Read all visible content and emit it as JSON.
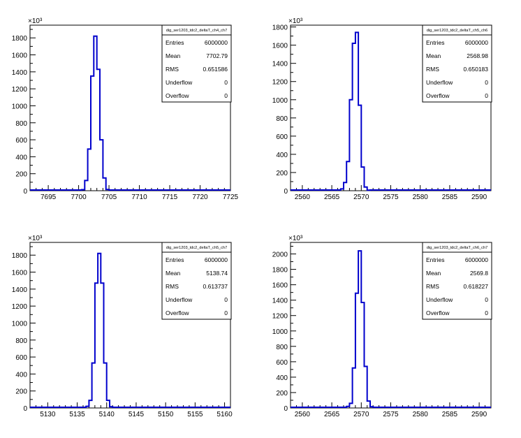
{
  "exponent_label": "×10³",
  "stats_labels": [
    "Entries",
    "Mean",
    "RMS",
    "Underflow",
    "Overflow"
  ],
  "chart_data": [
    {
      "type": "bar",
      "title": "dig_ser1203_tdc2_deltaT_ch4_ch7",
      "stats": [
        "6000000",
        "7702.79",
        "0.651586",
        "0",
        "0"
      ],
      "xlim": [
        7692,
        7725
      ],
      "ylim": [
        0,
        1950
      ],
      "xticks": [
        7695,
        7700,
        7705,
        7710,
        7715,
        7720,
        7725
      ],
      "yticks": [
        0,
        200,
        400,
        600,
        800,
        1000,
        1200,
        1400,
        1600,
        1800
      ],
      "bin_width": 0.5,
      "bins": [
        [
          7700.5,
          12
        ],
        [
          7701,
          120
        ],
        [
          7701.5,
          490
        ],
        [
          7702,
          1350
        ],
        [
          7702.5,
          1820
        ],
        [
          7703,
          1430
        ],
        [
          7703.5,
          600
        ],
        [
          7704,
          150
        ],
        [
          7704.5,
          15
        ]
      ]
    },
    {
      "type": "bar",
      "title": "dig_ser1203_tdc2_deltaT_ch5_ch6",
      "stats": [
        "6000000",
        "2568.98",
        "0.650183",
        "0",
        "0"
      ],
      "xlim": [
        2558,
        2592
      ],
      "ylim": [
        0,
        1820
      ],
      "xticks": [
        2560,
        2565,
        2570,
        2575,
        2580,
        2585,
        2590
      ],
      "yticks": [
        0,
        200,
        400,
        600,
        800,
        1000,
        1200,
        1400,
        1600,
        1800
      ],
      "bin_width": 0.5,
      "bins": [
        [
          2566.5,
          20
        ],
        [
          2567,
          90
        ],
        [
          2567.5,
          320
        ],
        [
          2568,
          1000
        ],
        [
          2568.5,
          1620
        ],
        [
          2569,
          1740
        ],
        [
          2569.5,
          940
        ],
        [
          2570,
          260
        ],
        [
          2570.5,
          40
        ],
        [
          2571,
          5
        ]
      ]
    },
    {
      "type": "bar",
      "title": "dig_ser1203_tdc2_deltaT_ch5_ch7",
      "stats": [
        "6000000",
        "5138.74",
        "0.613737",
        "0",
        "0"
      ],
      "xlim": [
        5127,
        5161
      ],
      "ylim": [
        0,
        1950
      ],
      "xticks": [
        5130,
        5135,
        5140,
        5145,
        5150,
        5155,
        5160
      ],
      "yticks": [
        0,
        200,
        400,
        600,
        800,
        1000,
        1200,
        1400,
        1600,
        1800
      ],
      "bin_width": 0.5,
      "bins": [
        [
          5136.5,
          20
        ],
        [
          5137,
          90
        ],
        [
          5137.5,
          530
        ],
        [
          5138,
          1470
        ],
        [
          5138.5,
          1820
        ],
        [
          5139,
          1470
        ],
        [
          5139.5,
          530
        ],
        [
          5140,
          90
        ],
        [
          5140.5,
          15
        ]
      ]
    },
    {
      "type": "bar",
      "title": "dig_ser1203_tdc2_deltaT_ch6_ch7",
      "stats": [
        "6000000",
        "2569.8",
        "0.618227",
        "0",
        "0"
      ],
      "xlim": [
        2558,
        2592
      ],
      "ylim": [
        0,
        2150
      ],
      "xticks": [
        2560,
        2565,
        2570,
        2575,
        2580,
        2585,
        2590
      ],
      "yticks": [
        0,
        200,
        400,
        600,
        800,
        1000,
        1200,
        1400,
        1600,
        1800,
        2000
      ],
      "bin_width": 0.5,
      "bins": [
        [
          2567.5,
          20
        ],
        [
          2568,
          60
        ],
        [
          2568.5,
          520
        ],
        [
          2569,
          1490
        ],
        [
          2569.5,
          2040
        ],
        [
          2570,
          1370
        ],
        [
          2570.5,
          540
        ],
        [
          2571,
          90
        ],
        [
          2571.5,
          15
        ]
      ]
    }
  ]
}
